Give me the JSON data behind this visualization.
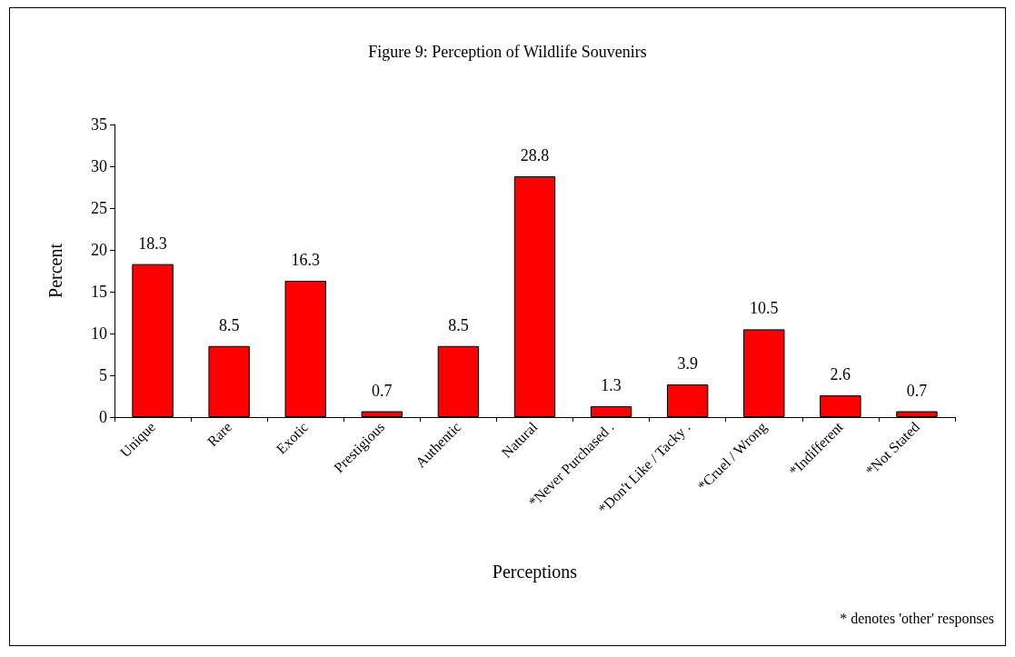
{
  "chart_data": {
    "type": "bar",
    "title": "Figure 9: Perception of Wildlife Souvenirs",
    "xlabel": "Perceptions",
    "ylabel": "Percent",
    "categories": [
      "Unique",
      "Rare",
      "Exotic",
      "Prestigious",
      "Authentic",
      "Natural",
      "*Never Purchased .",
      "*Don't Like / Tacky .",
      "*Cruel / Wrong",
      "*Indifferent",
      "*Not Stated"
    ],
    "values": [
      18.3,
      8.5,
      16.3,
      0.7,
      8.5,
      28.8,
      1.3,
      3.9,
      10.5,
      2.6,
      0.7
    ],
    "color": "#ff0000",
    "ylim": [
      0,
      35
    ],
    "yticks": [
      0,
      5,
      10,
      15,
      20,
      25,
      30,
      35
    ],
    "grid": false,
    "data_labels": true,
    "annotations": [
      "* denotes 'other' responses"
    ]
  }
}
